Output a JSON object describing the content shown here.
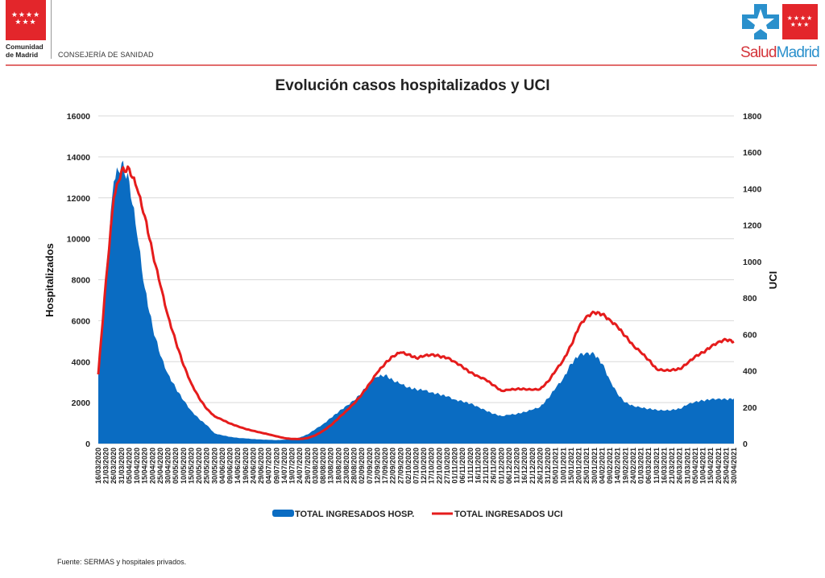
{
  "header": {
    "left_logo_name_line1": "Comunidad",
    "left_logo_name_line2": "de Madrid",
    "left_logo_stars": "★★★★\n★★★",
    "department": "CONSEJERÍA DE SANIDAD",
    "right_logo_part1": "Salud",
    "right_logo_part2": "Madrid",
    "right_logo_stars": "★★★★\n★★★"
  },
  "colors": {
    "hosp_fill": "#0a6cc2",
    "uci_line": "#e51c1c",
    "brand_red": "#e3262b",
    "brand_blue": "#2a90cc",
    "grid": "#d9d9d9"
  },
  "footer": {
    "source": "Fuente: SERMAS y hospitales privados."
  },
  "chart_data": {
    "type": "area",
    "title": "Evolución casos hospitalizados y UCI",
    "xlabel": "",
    "ylabel": "Hospitalizados",
    "y2label": "UCI",
    "ylim": [
      0,
      16000
    ],
    "y2lim": [
      0,
      1800
    ],
    "yticks": [
      "0",
      "2000",
      "4000",
      "6000",
      "8000",
      "10000",
      "12000",
      "14000",
      "16000"
    ],
    "y2ticks": [
      "0",
      "200",
      "400",
      "600",
      "800",
      "1000",
      "1200",
      "1400",
      "1600",
      "1800"
    ],
    "grid": true,
    "legend_position": "bottom",
    "categories": [
      "16/03/2020",
      "21/03/2020",
      "26/03/2020",
      "31/03/2020",
      "05/04/2020",
      "10/04/2020",
      "15/04/2020",
      "20/04/2020",
      "25/04/2020",
      "30/04/2020",
      "05/05/2020",
      "10/05/2020",
      "15/05/2020",
      "20/05/2020",
      "25/05/2020",
      "30/05/2020",
      "04/06/2020",
      "09/06/2020",
      "14/06/2020",
      "19/06/2020",
      "24/06/2020",
      "29/06/2020",
      "04/07/2020",
      "09/07/2020",
      "14/07/2020",
      "19/07/2020",
      "24/07/2020",
      "29/07/2020",
      "03/08/2020",
      "08/08/2020",
      "13/08/2020",
      "18/08/2020",
      "23/08/2020",
      "28/08/2020",
      "02/09/2020",
      "07/09/2020",
      "12/09/2020",
      "17/09/2020",
      "22/09/2020",
      "27/09/2020",
      "02/10/2020",
      "07/10/2020",
      "12/10/2020",
      "17/10/2020",
      "22/10/2020",
      "27/10/2020",
      "01/11/2020",
      "06/11/2020",
      "11/11/2020",
      "16/11/2020",
      "21/11/2020",
      "26/11/2020",
      "01/12/2020",
      "06/12/2020",
      "11/12/2020",
      "16/12/2020",
      "21/12/2020",
      "26/12/2020",
      "31/12/2020",
      "05/01/2021",
      "10/01/2021",
      "15/01/2021",
      "20/01/2021",
      "25/01/2021",
      "30/01/2021",
      "04/02/2021",
      "09/02/2021",
      "14/02/2021",
      "19/02/2021",
      "24/02/2021",
      "01/03/2021",
      "06/03/2021",
      "11/03/2021",
      "16/03/2021",
      "21/03/2021",
      "26/03/2021",
      "31/03/2021",
      "05/04/2021",
      "10/04/2021",
      "15/04/2021",
      "20/04/2021",
      "25/04/2021",
      "30/04/2021"
    ],
    "series": [
      {
        "name": "TOTAL INGRESADOS HOSP.",
        "axis": "left",
        "kind": "area",
        "values": [
          3400,
          8500,
          12800,
          13700,
          12800,
          10200,
          7600,
          5700,
          4300,
          3400,
          2700,
          2100,
          1600,
          1200,
          900,
          500,
          400,
          330,
          280,
          250,
          220,
          200,
          180,
          170,
          190,
          230,
          300,
          450,
          700,
          950,
          1250,
          1550,
          1850,
          2100,
          2500,
          3000,
          3250,
          3350,
          3100,
          2900,
          2750,
          2650,
          2600,
          2500,
          2400,
          2300,
          2150,
          2050,
          1950,
          1800,
          1600,
          1450,
          1350,
          1400,
          1450,
          1550,
          1650,
          1800,
          2200,
          2700,
          3200,
          3900,
          4300,
          4450,
          4350,
          3900,
          3100,
          2400,
          2000,
          1850,
          1750,
          1700,
          1650,
          1600,
          1650,
          1700,
          1900,
          2050,
          2100,
          2150,
          2200,
          2150,
          2200
        ]
      },
      {
        "name": "TOTAL INGRESADOS UCI",
        "axis": "right",
        "kind": "line",
        "values": [
          380,
          900,
          1350,
          1500,
          1510,
          1400,
          1250,
          1050,
          870,
          700,
          560,
          430,
          330,
          250,
          190,
          150,
          130,
          110,
          95,
          80,
          70,
          60,
          50,
          40,
          30,
          25,
          25,
          30,
          45,
          70,
          100,
          140,
          180,
          220,
          270,
          330,
          390,
          440,
          480,
          500,
          490,
          470,
          480,
          490,
          480,
          470,
          450,
          420,
          390,
          370,
          350,
          320,
          290,
          295,
          300,
          300,
          295,
          300,
          340,
          400,
          460,
          540,
          640,
          700,
          720,
          710,
          680,
          640,
          590,
          540,
          500,
          460,
          410,
          400,
          405,
          410,
          440,
          480,
          500,
          530,
          560,
          570,
          560
        ]
      }
    ]
  }
}
